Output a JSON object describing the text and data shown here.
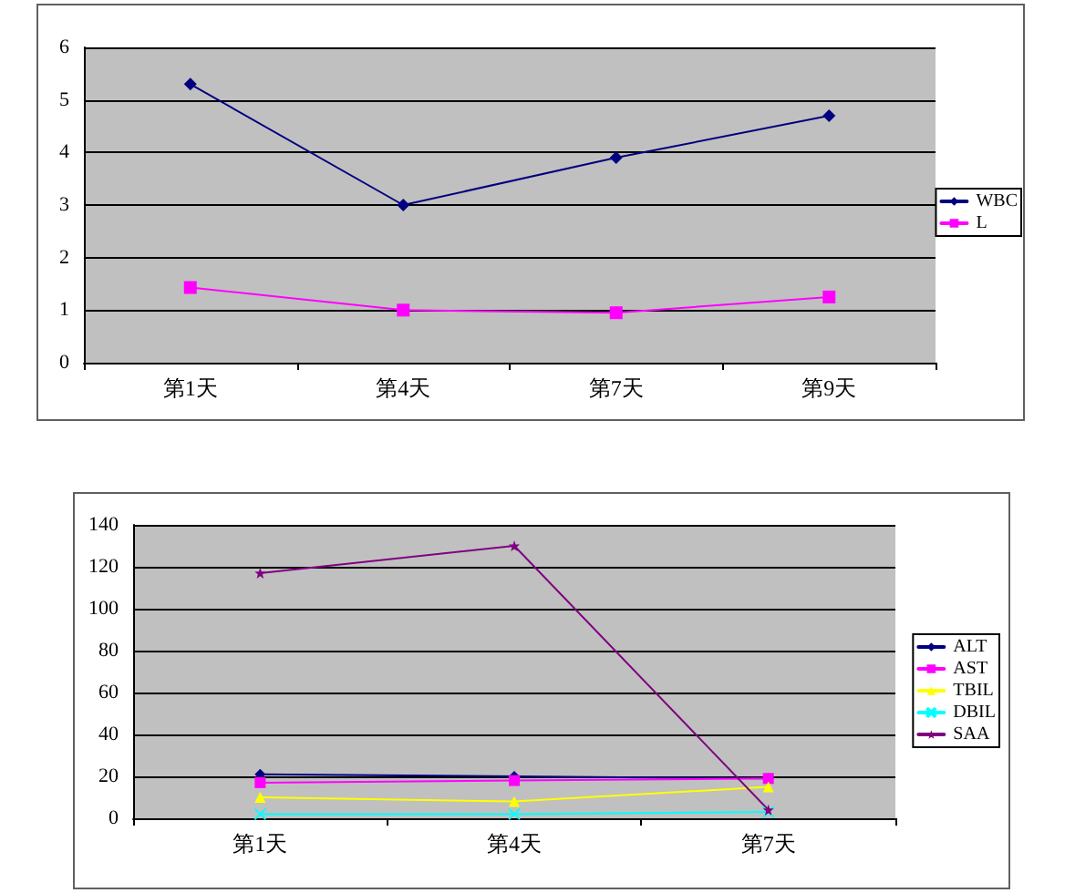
{
  "chart_data": [
    {
      "type": "line",
      "categories": [
        "第1天",
        "第4天",
        "第7天",
        "第9天"
      ],
      "series": [
        {
          "name": "WBC",
          "color": "#000080",
          "marker": "diamond",
          "values": [
            5.3,
            3.0,
            3.9,
            4.7
          ]
        },
        {
          "name": "L",
          "color": "#ff00ff",
          "marker": "square",
          "values": [
            1.43,
            1.0,
            0.95,
            1.25
          ]
        }
      ],
      "ylim": [
        0,
        6
      ],
      "yticks": [
        0,
        1,
        2,
        3,
        4,
        5,
        6
      ],
      "grid": "y",
      "legend": "right"
    },
    {
      "type": "line",
      "categories": [
        "第1天",
        "第4天",
        "第7天"
      ],
      "series": [
        {
          "name": "ALT",
          "color": "#000080",
          "marker": "diamond",
          "values": [
            21,
            20,
            19
          ]
        },
        {
          "name": "AST",
          "color": "#ff00ff",
          "marker": "square",
          "values": [
            17,
            18,
            19
          ]
        },
        {
          "name": "TBIL",
          "color": "#ffff00",
          "marker": "triangle",
          "values": [
            10,
            8,
            15
          ]
        },
        {
          "name": "DBIL",
          "color": "#00ffff",
          "marker": "cross",
          "values": [
            2,
            2,
            3
          ]
        },
        {
          "name": "SAA",
          "color": "#800080",
          "marker": "star",
          "values": [
            117,
            130,
            4
          ]
        }
      ],
      "ylim": [
        0,
        140
      ],
      "yticks": [
        0,
        20,
        40,
        60,
        80,
        100,
        120,
        140
      ],
      "grid": "y",
      "legend": "right"
    }
  ]
}
